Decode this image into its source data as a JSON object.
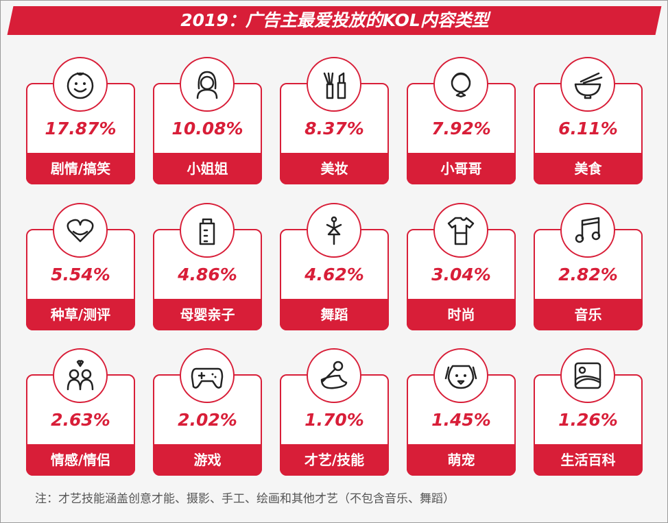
{
  "header": {
    "title": "2019：广告主最爱投放的KOL内容类型"
  },
  "cards": [
    {
      "value": "17.87%",
      "label": "剧情/搞笑"
    },
    {
      "value": "10.08%",
      "label": "小姐姐"
    },
    {
      "value": "8.37%",
      "label": "美妆"
    },
    {
      "value": "7.92%",
      "label": "小哥哥"
    },
    {
      "value": "6.11%",
      "label": "美食"
    },
    {
      "value": "5.54%",
      "label": "种草/测评"
    },
    {
      "value": "4.86%",
      "label": "母婴亲子"
    },
    {
      "value": "4.62%",
      "label": "舞蹈"
    },
    {
      "value": "3.04%",
      "label": "时尚"
    },
    {
      "value": "2.82%",
      "label": "音乐"
    },
    {
      "value": "2.63%",
      "label": "情感/情侣"
    },
    {
      "value": "2.02%",
      "label": "游戏"
    },
    {
      "value": "1.70%",
      "label": "才艺/技能"
    },
    {
      "value": "1.45%",
      "label": "萌宠"
    },
    {
      "value": "1.26%",
      "label": "生活百科"
    }
  ],
  "note": "注：才艺技能涵盖创意才能、摄影、手工、绘画和其他才艺（不包含音乐、舞蹈）"
}
